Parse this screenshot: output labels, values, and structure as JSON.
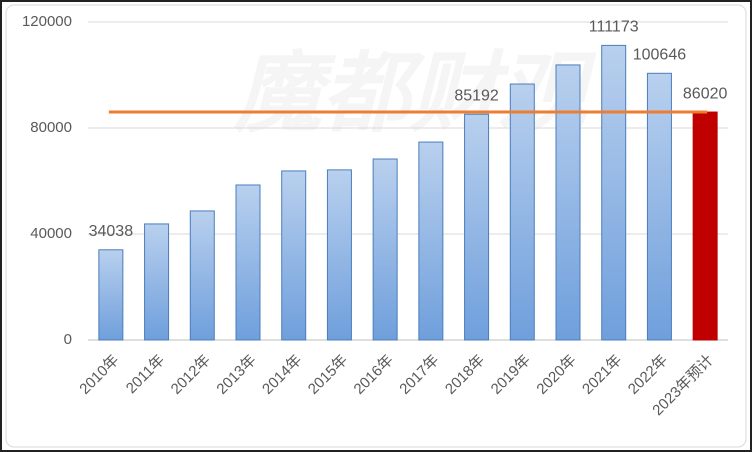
{
  "chart_data": {
    "type": "bar",
    "watermark": "魔都财观",
    "categories": [
      "2010年",
      "2011年",
      "2012年",
      "2013年",
      "2014年",
      "2015年",
      "2016年",
      "2017年",
      "2018年",
      "2019年",
      "2020年",
      "2021年",
      "2022年",
      "2023年预计"
    ],
    "values": [
      34038,
      43800,
      48700,
      58500,
      63800,
      64200,
      68300,
      74700,
      85192,
      96600,
      103800,
      111173,
      100646,
      86020
    ],
    "colors": [
      "#7fa9df",
      "#7fa9df",
      "#7fa9df",
      "#7fa9df",
      "#7fa9df",
      "#7fa9df",
      "#7fa9df",
      "#7fa9df",
      "#7fa9df",
      "#7fa9df",
      "#7fa9df",
      "#7fa9df",
      "#7fa9df",
      "#c00000"
    ],
    "labeled": [
      0,
      8,
      11,
      12,
      13
    ],
    "reference_line": {
      "value": 86020,
      "color": "#ed7d31"
    },
    "ylim": [
      0,
      120000
    ],
    "yticks": [
      0,
      40000,
      80000,
      120000
    ],
    "grid": true
  }
}
